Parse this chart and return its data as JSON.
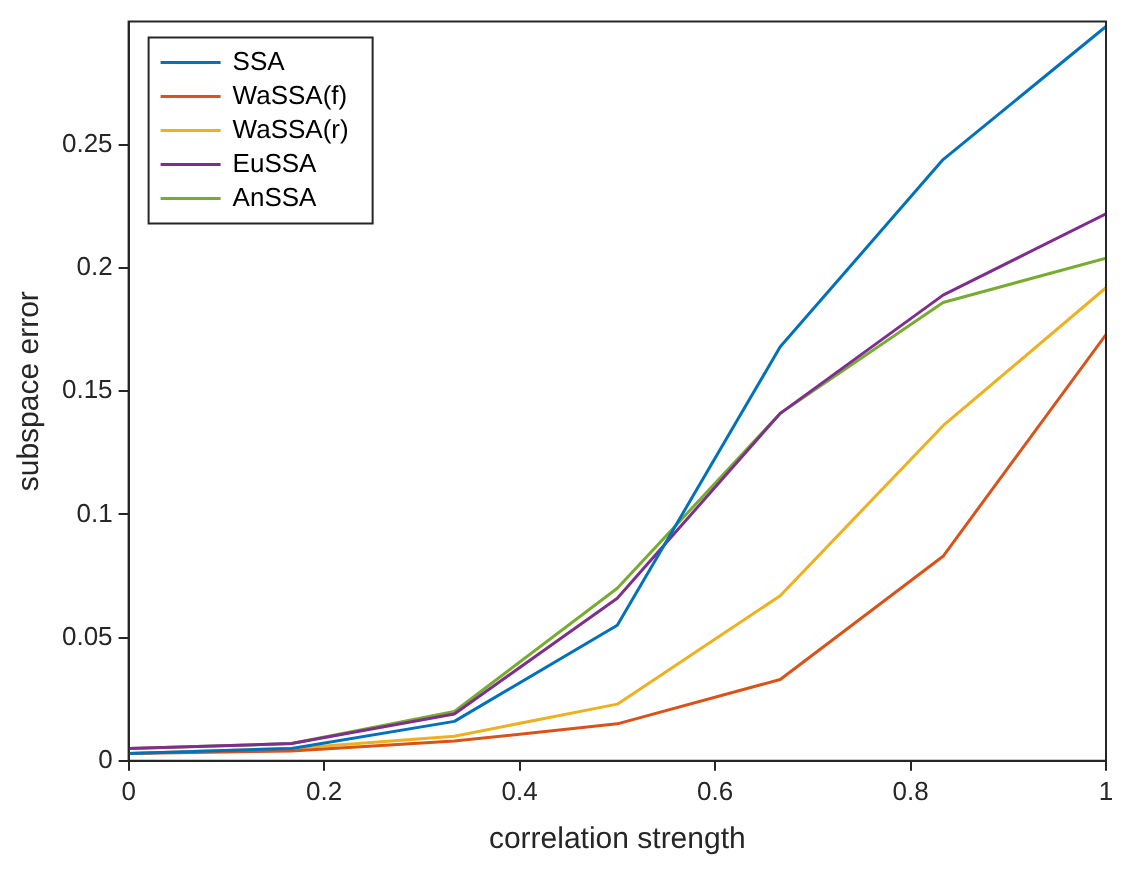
{
  "chart_data": {
    "type": "line",
    "xlabel": "correlation strength",
    "ylabel": "subspace error",
    "x": [
      0,
      0.1667,
      0.3333,
      0.5,
      0.6667,
      0.8333,
      1
    ],
    "series": [
      {
        "name": "SSA",
        "color": "#0072bd",
        "values": [
          0.003,
          0.005,
          0.016,
          0.055,
          0.168,
          0.244,
          0.298
        ]
      },
      {
        "name": "WaSSA(f)",
        "color": "#d95319",
        "values": [
          0.003,
          0.004,
          0.008,
          0.015,
          0.033,
          0.083,
          0.173
        ]
      },
      {
        "name": "WaSSA(r)",
        "color": "#edb120",
        "values": [
          0.003,
          0.005,
          0.01,
          0.023,
          0.067,
          0.136,
          0.192
        ]
      },
      {
        "name": "EuSSA",
        "color": "#7e2f8e",
        "values": [
          0.005,
          0.007,
          0.019,
          0.066,
          0.141,
          0.189,
          0.222
        ]
      },
      {
        "name": "AnSSA",
        "color": "#77ac30",
        "values": [
          0.005,
          0.007,
          0.02,
          0.07,
          0.141,
          0.186,
          0.204
        ]
      }
    ],
    "xlim": [
      0,
      1
    ],
    "xticks": [
      0,
      0.2,
      0.4,
      0.6,
      0.8,
      1
    ],
    "ylim": [
      0,
      0.3
    ],
    "yticks": [
      0,
      0.05,
      0.1,
      0.15,
      0.2,
      0.25
    ],
    "grid": false,
    "legend": "top left",
    "marker": "none",
    "line_style": "solid"
  }
}
